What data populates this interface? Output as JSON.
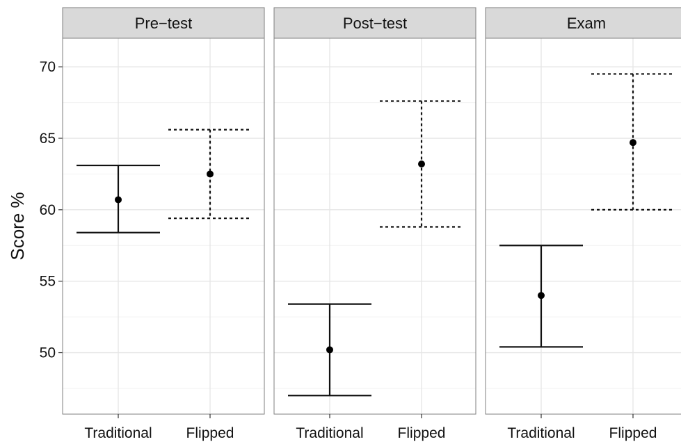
{
  "chart_data": {
    "type": "errorbar",
    "ylabel": "Score %",
    "ylim": [
      45.7,
      72
    ],
    "yticks": [
      50,
      55,
      60,
      65,
      70
    ],
    "panels": [
      "Pre−test",
      "Post−test",
      "Exam"
    ],
    "categories": [
      "Traditional",
      "Flipped"
    ],
    "series": [
      {
        "panel": "Pre−test",
        "points": [
          {
            "category": "Traditional",
            "mean": 60.7,
            "lower": 58.4,
            "upper": 63.1,
            "linestyle": "solid"
          },
          {
            "category": "Flipped",
            "mean": 62.5,
            "lower": 59.4,
            "upper": 65.6,
            "linestyle": "dashed"
          }
        ]
      },
      {
        "panel": "Post−test",
        "points": [
          {
            "category": "Traditional",
            "mean": 50.2,
            "lower": 47.0,
            "upper": 53.4,
            "linestyle": "solid"
          },
          {
            "category": "Flipped",
            "mean": 63.2,
            "lower": 58.8,
            "upper": 67.6,
            "linestyle": "dashed"
          }
        ]
      },
      {
        "panel": "Exam",
        "points": [
          {
            "category": "Traditional",
            "mean": 54.0,
            "lower": 50.4,
            "upper": 57.5,
            "linestyle": "solid"
          },
          {
            "category": "Flipped",
            "mean": 64.7,
            "lower": 60.0,
            "upper": 69.5,
            "linestyle": "dashed"
          }
        ]
      }
    ]
  }
}
